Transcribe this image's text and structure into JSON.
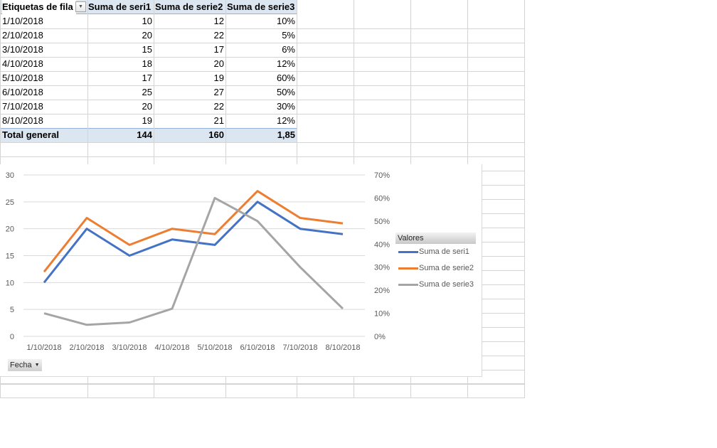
{
  "pivot": {
    "headers": {
      "row_label": "Etiquetas de fila",
      "col1": "Suma de seri1",
      "col2": "Suma de serie2",
      "col3": "Suma de serie3"
    },
    "rows": [
      {
        "label": "1/10/2018",
        "s1": "10",
        "s2": "12",
        "s3": "10%"
      },
      {
        "label": "2/10/2018",
        "s1": "20",
        "s2": "22",
        "s3": "5%"
      },
      {
        "label": "3/10/2018",
        "s1": "15",
        "s2": "17",
        "s3": "6%"
      },
      {
        "label": "4/10/2018",
        "s1": "18",
        "s2": "20",
        "s3": "12%"
      },
      {
        "label": "5/10/2018",
        "s1": "17",
        "s2": "19",
        "s3": "60%"
      },
      {
        "label": "6/10/2018",
        "s1": "25",
        "s2": "27",
        "s3": "50%"
      },
      {
        "label": "7/10/2018",
        "s1": "20",
        "s2": "22",
        "s3": "30%"
      },
      {
        "label": "8/10/2018",
        "s1": "19",
        "s2": "21",
        "s3": "12%"
      }
    ],
    "total": {
      "label": "Total general",
      "s1": "144",
      "s2": "160",
      "s3": "1,85"
    },
    "filter_icon": "dropdown-arrow-icon"
  },
  "chart": {
    "legend_title": "Valores",
    "field_button": "Fecha",
    "colors": {
      "serie1": "#4472c4",
      "serie2": "#ed7d31",
      "serie3": "#a5a5a5"
    }
  },
  "chart_data": {
    "type": "line",
    "title": "",
    "xlabel": "",
    "ylabel": "",
    "categories": [
      "1/10/2018",
      "2/10/2018",
      "3/10/2018",
      "4/10/2018",
      "5/10/2018",
      "6/10/2018",
      "7/10/2018",
      "8/10/2018"
    ],
    "series": [
      {
        "name": "Suma de seri1",
        "axis": "primary",
        "values": [
          10,
          20,
          15,
          18,
          17,
          25,
          20,
          19
        ]
      },
      {
        "name": "Suma de serie2",
        "axis": "primary",
        "values": [
          12,
          22,
          17,
          20,
          19,
          27,
          22,
          21
        ]
      },
      {
        "name": "Suma de serie3",
        "axis": "secondary",
        "values": [
          0.1,
          0.05,
          0.06,
          0.12,
          0.6,
          0.5,
          0.3,
          0.12
        ]
      }
    ],
    "ylim": [
      0,
      30
    ],
    "yticks": [
      "0",
      "5",
      "10",
      "15",
      "20",
      "25",
      "30"
    ],
    "y2lim": [
      0,
      0.7
    ],
    "y2ticks": [
      "0%",
      "10%",
      "20%",
      "30%",
      "40%",
      "50%",
      "60%",
      "70%"
    ],
    "grid": true,
    "legend_position": "right",
    "legend_title": "Valores"
  }
}
